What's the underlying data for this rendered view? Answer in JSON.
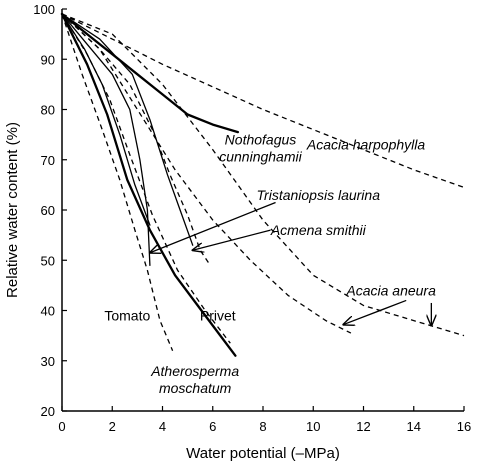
{
  "chart_data": {
    "type": "line",
    "title": "",
    "xlabel": "Water potential (–MPa)",
    "ylabel": "Relative water content (%)",
    "xlim": [
      0,
      16
    ],
    "ylim": [
      20,
      100
    ],
    "xticks": [
      0,
      2,
      4,
      6,
      8,
      10,
      12,
      14,
      16
    ],
    "yticks": [
      20,
      30,
      40,
      50,
      60,
      70,
      80,
      90,
      100
    ],
    "grid": false,
    "series": [
      {
        "name": "Nothofagus cunninghamii",
        "style": "solid-bold",
        "points": [
          [
            0,
            99
          ],
          [
            1,
            95
          ],
          [
            2,
            91
          ],
          [
            3,
            87
          ],
          [
            4,
            83
          ],
          [
            5,
            79
          ],
          [
            6,
            77
          ],
          [
            7,
            75.5
          ]
        ]
      },
      {
        "name": "Acacia harpophylla",
        "style": "dashed",
        "points": [
          [
            0,
            99
          ],
          [
            2,
            94
          ],
          [
            4,
            89
          ],
          [
            6,
            84.5
          ],
          [
            8,
            80
          ],
          [
            10,
            76
          ],
          [
            12,
            72
          ],
          [
            14,
            68
          ],
          [
            16,
            64.5
          ]
        ]
      },
      {
        "name": "Tristaniopsis laurina",
        "style": "solid",
        "points": [
          [
            0,
            99
          ],
          [
            1,
            93
          ],
          [
            2,
            87
          ],
          [
            2.7,
            80
          ],
          [
            3.1,
            70
          ],
          [
            3.4,
            60
          ],
          [
            3.5,
            49
          ]
        ]
      },
      {
        "name": "Acmena smithii",
        "style": "solid",
        "points": [
          [
            0,
            99
          ],
          [
            1.5,
            94
          ],
          [
            2.8,
            87
          ],
          [
            3.5,
            78
          ],
          [
            4.2,
            67
          ],
          [
            4.7,
            60
          ],
          [
            5.2,
            53
          ]
        ]
      },
      {
        "name": "Acacia aneura",
        "style": "dashed",
        "points": [
          [
            0,
            99
          ],
          [
            2,
            95
          ],
          [
            4,
            85
          ],
          [
            6,
            72
          ],
          [
            8,
            58
          ],
          [
            10,
            47
          ],
          [
            12,
            41
          ],
          [
            14,
            38
          ],
          [
            16,
            35
          ]
        ]
      },
      {
        "name": "",
        "style": "dashed",
        "points": [
          [
            0,
            99
          ],
          [
            1.5,
            92
          ],
          [
            3,
            80
          ],
          [
            4.5,
            68
          ],
          [
            6,
            58
          ],
          [
            7.5,
            50
          ],
          [
            9,
            43
          ],
          [
            10.5,
            38
          ],
          [
            11.5,
            35.5
          ]
        ]
      },
      {
        "name": "",
        "style": "dashed",
        "points": [
          [
            0,
            99
          ],
          [
            1.5,
            92
          ],
          [
            2.7,
            85
          ],
          [
            3.6,
            76
          ],
          [
            4.3,
            67
          ],
          [
            5,
            59
          ],
          [
            5.5,
            52
          ],
          [
            5.9,
            49
          ]
        ]
      },
      {
        "name": "Tomato",
        "style": "dashed",
        "points": [
          [
            0,
            99
          ],
          [
            0.8,
            87
          ],
          [
            1.6,
            76
          ],
          [
            2.3,
            66
          ],
          [
            2.9,
            56
          ],
          [
            3.4,
            48
          ],
          [
            3.9,
            38
          ],
          [
            4.4,
            32
          ]
        ]
      },
      {
        "name": "Privet",
        "style": "dashed",
        "points": [
          [
            0,
            99
          ],
          [
            1,
            91
          ],
          [
            1.9,
            82
          ],
          [
            2.7,
            71
          ],
          [
            3.6,
            59
          ],
          [
            4.6,
            48
          ],
          [
            5.7,
            40
          ],
          [
            6.7,
            33.5
          ]
        ]
      },
      {
        "name": "Atherosperma moschatum",
        "style": "solid-bold",
        "points": [
          [
            0,
            99
          ],
          [
            1,
            89
          ],
          [
            1.8,
            79
          ],
          [
            2.6,
            66
          ],
          [
            3.5,
            56
          ],
          [
            4.5,
            47
          ],
          [
            5.7,
            39
          ],
          [
            6.9,
            31
          ]
        ]
      },
      {
        "name": "",
        "style": "solid",
        "points": [
          [
            0,
            99
          ],
          [
            0.9,
            92
          ],
          [
            1.6,
            85
          ],
          [
            2.3,
            75
          ],
          [
            2.9,
            65
          ],
          [
            3.5,
            57
          ]
        ]
      }
    ],
    "annotations": [
      {
        "lines": [
          "Nothofagus",
          "cunninghamii"
        ],
        "italic": true,
        "at": [
          7.9,
          73
        ]
      },
      {
        "lines": [
          "Acacia harpophylla"
        ],
        "italic": true,
        "at": [
          12.1,
          72
        ]
      },
      {
        "lines": [
          "Tristaniopsis laurina"
        ],
        "italic": true,
        "at": [
          10.2,
          62
        ]
      },
      {
        "lines": [
          "Acmena smithii"
        ],
        "italic": true,
        "at": [
          10.2,
          55
        ]
      },
      {
        "lines": [
          "Acacia aneura"
        ],
        "italic": true,
        "at": [
          13.1,
          43
        ]
      },
      {
        "lines": [
          "Tomato"
        ],
        "italic": false,
        "at": [
          2.6,
          38
        ]
      },
      {
        "lines": [
          "Privet"
        ],
        "italic": false,
        "at": [
          6.2,
          38
        ]
      },
      {
        "lines": [
          "Atherosperma",
          "moschatum"
        ],
        "italic": true,
        "at": [
          5.3,
          27
        ]
      }
    ],
    "arrows": [
      {
        "from": [
          8.5,
          61.5
        ],
        "to": [
          3.5,
          51.5
        ]
      },
      {
        "from": [
          8.3,
          56
        ],
        "to": [
          5.2,
          52
        ]
      },
      {
        "from": [
          13.7,
          42
        ],
        "to": [
          11.2,
          37.2
        ]
      },
      {
        "from": [
          14.7,
          41.5
        ],
        "to": [
          14.7,
          37
        ]
      }
    ]
  }
}
